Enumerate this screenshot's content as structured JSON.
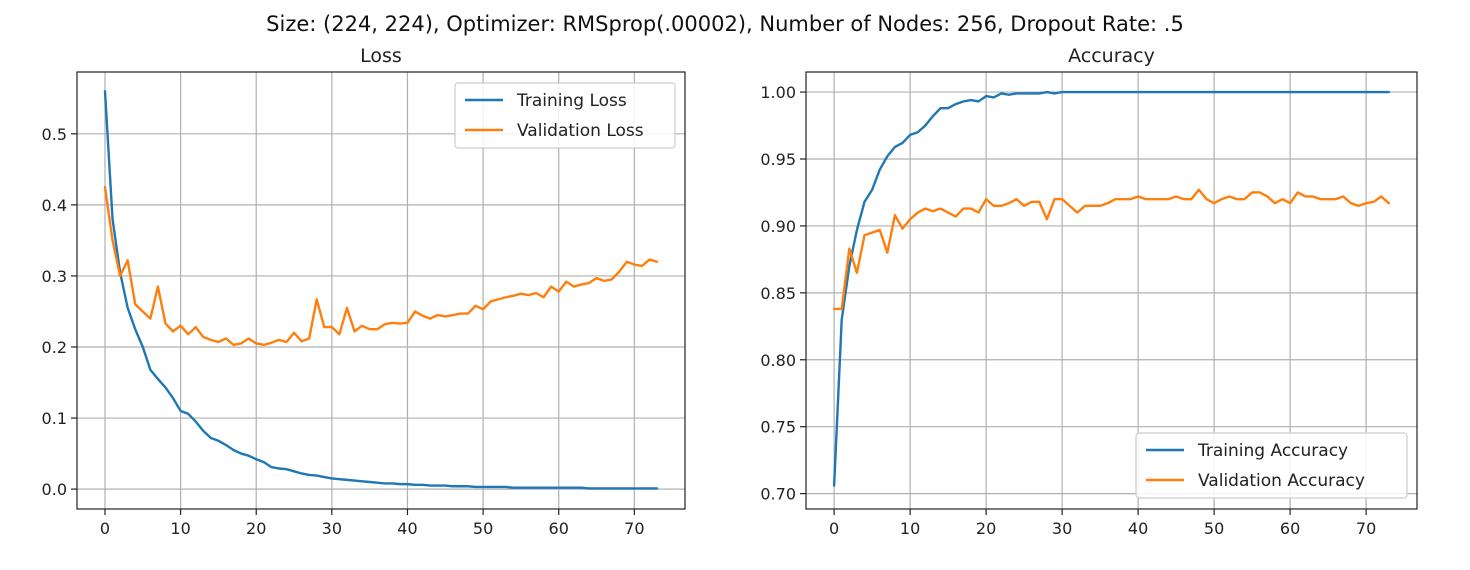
{
  "figure": {
    "suptitle": "Size: (224, 224), Optimizer: RMSprop(.00002), Number of Nodes: 256, Dropout Rate: .5"
  },
  "chart_data": [
    {
      "type": "line",
      "title": "Loss",
      "xlabel": "",
      "ylabel": "",
      "xlim": [
        -3.7,
        76.7
      ],
      "ylim": [
        -0.028,
        0.587
      ],
      "xticks": [
        0,
        10,
        20,
        30,
        40,
        50,
        60,
        70
      ],
      "yticks": [
        0.0,
        0.1,
        0.2,
        0.3,
        0.4,
        0.5
      ],
      "ytick_format": 1,
      "grid": true,
      "legend": "upper right",
      "x": [
        0,
        1,
        2,
        3,
        4,
        5,
        6,
        7,
        8,
        9,
        10,
        11,
        12,
        13,
        14,
        15,
        16,
        17,
        18,
        19,
        20,
        21,
        22,
        23,
        24,
        25,
        26,
        27,
        28,
        29,
        30,
        31,
        32,
        33,
        34,
        35,
        36,
        37,
        38,
        39,
        40,
        41,
        42,
        43,
        44,
        45,
        46,
        47,
        48,
        49,
        50,
        51,
        52,
        53,
        54,
        55,
        56,
        57,
        58,
        59,
        60,
        61,
        62,
        63,
        64,
        65,
        66,
        67,
        68,
        69,
        70,
        71,
        72,
        73
      ],
      "series": [
        {
          "name": "Training Loss",
          "color": "#1f77b4",
          "values": [
            0.56,
            0.38,
            0.305,
            0.255,
            0.225,
            0.2,
            0.168,
            0.155,
            0.143,
            0.128,
            0.11,
            0.106,
            0.095,
            0.082,
            0.072,
            0.068,
            0.062,
            0.055,
            0.05,
            0.047,
            0.042,
            0.038,
            0.031,
            0.029,
            0.028,
            0.025,
            0.022,
            0.02,
            0.019,
            0.017,
            0.015,
            0.014,
            0.013,
            0.012,
            0.011,
            0.01,
            0.009,
            0.008,
            0.008,
            0.007,
            0.007,
            0.006,
            0.006,
            0.005,
            0.005,
            0.005,
            0.004,
            0.004,
            0.004,
            0.003,
            0.003,
            0.003,
            0.003,
            0.003,
            0.002,
            0.002,
            0.002,
            0.002,
            0.002,
            0.002,
            0.002,
            0.002,
            0.002,
            0.002,
            0.001,
            0.001,
            0.001,
            0.001,
            0.001,
            0.001,
            0.001,
            0.001,
            0.001,
            0.001
          ]
        },
        {
          "name": "Validation Loss",
          "color": "#ff7f0e",
          "values": [
            0.425,
            0.35,
            0.3,
            0.322,
            0.26,
            0.25,
            0.24,
            0.285,
            0.233,
            0.222,
            0.23,
            0.218,
            0.228,
            0.214,
            0.21,
            0.207,
            0.212,
            0.203,
            0.205,
            0.212,
            0.205,
            0.203,
            0.206,
            0.21,
            0.207,
            0.22,
            0.208,
            0.212,
            0.267,
            0.228,
            0.228,
            0.218,
            0.255,
            0.222,
            0.23,
            0.225,
            0.225,
            0.232,
            0.234,
            0.233,
            0.234,
            0.25,
            0.244,
            0.24,
            0.245,
            0.243,
            0.245,
            0.247,
            0.247,
            0.258,
            0.253,
            0.264,
            0.267,
            0.27,
            0.272,
            0.275,
            0.273,
            0.276,
            0.27,
            0.285,
            0.278,
            0.292,
            0.285,
            0.288,
            0.29,
            0.297,
            0.293,
            0.295,
            0.306,
            0.32,
            0.316,
            0.314,
            0.323,
            0.32
          ]
        }
      ]
    },
    {
      "type": "line",
      "title": "Accuracy",
      "xlabel": "",
      "ylabel": "",
      "xlim": [
        -3.7,
        76.7
      ],
      "ylim": [
        0.6885,
        1.015
      ],
      "xticks": [
        0,
        10,
        20,
        30,
        40,
        50,
        60,
        70
      ],
      "yticks": [
        0.7,
        0.75,
        0.8,
        0.85,
        0.9,
        0.95,
        1.0
      ],
      "ytick_format": 2,
      "grid": true,
      "legend": "lower right",
      "x": [
        0,
        1,
        2,
        3,
        4,
        5,
        6,
        7,
        8,
        9,
        10,
        11,
        12,
        13,
        14,
        15,
        16,
        17,
        18,
        19,
        20,
        21,
        22,
        23,
        24,
        25,
        26,
        27,
        28,
        29,
        30,
        31,
        32,
        33,
        34,
        35,
        36,
        37,
        38,
        39,
        40,
        41,
        42,
        43,
        44,
        45,
        46,
        47,
        48,
        49,
        50,
        51,
        52,
        53,
        54,
        55,
        56,
        57,
        58,
        59,
        60,
        61,
        62,
        63,
        64,
        65,
        66,
        67,
        68,
        69,
        70,
        71,
        72,
        73
      ],
      "series": [
        {
          "name": "Training Accuracy",
          "color": "#1f77b4",
          "values": [
            0.706,
            0.83,
            0.87,
            0.897,
            0.918,
            0.927,
            0.942,
            0.952,
            0.959,
            0.962,
            0.968,
            0.97,
            0.975,
            0.982,
            0.988,
            0.988,
            0.991,
            0.993,
            0.994,
            0.993,
            0.997,
            0.996,
            0.999,
            0.998,
            0.999,
            0.999,
            0.999,
            0.999,
            1.0,
            0.999,
            1.0,
            1.0,
            1.0,
            1.0,
            1.0,
            1.0,
            1.0,
            1.0,
            1.0,
            1.0,
            1.0,
            1.0,
            1.0,
            1.0,
            1.0,
            1.0,
            1.0,
            1.0,
            1.0,
            1.0,
            1.0,
            1.0,
            1.0,
            1.0,
            1.0,
            1.0,
            1.0,
            1.0,
            1.0,
            1.0,
            1.0,
            1.0,
            1.0,
            1.0,
            1.0,
            1.0,
            1.0,
            1.0,
            1.0,
            1.0,
            1.0,
            1.0,
            1.0,
            1.0
          ]
        },
        {
          "name": "Validation Accuracy",
          "color": "#ff7f0e",
          "values": [
            0.838,
            0.838,
            0.883,
            0.865,
            0.893,
            0.895,
            0.897,
            0.88,
            0.908,
            0.898,
            0.905,
            0.91,
            0.913,
            0.911,
            0.913,
            0.91,
            0.907,
            0.913,
            0.913,
            0.91,
            0.92,
            0.915,
            0.915,
            0.917,
            0.92,
            0.915,
            0.918,
            0.918,
            0.905,
            0.92,
            0.92,
            0.915,
            0.91,
            0.915,
            0.915,
            0.915,
            0.917,
            0.92,
            0.92,
            0.92,
            0.922,
            0.92,
            0.92,
            0.92,
            0.92,
            0.922,
            0.92,
            0.92,
            0.927,
            0.92,
            0.917,
            0.92,
            0.922,
            0.92,
            0.92,
            0.925,
            0.925,
            0.922,
            0.917,
            0.92,
            0.917,
            0.925,
            0.922,
            0.922,
            0.92,
            0.92,
            0.92,
            0.922,
            0.917,
            0.915,
            0.917,
            0.918,
            0.922,
            0.917
          ]
        }
      ]
    }
  ]
}
